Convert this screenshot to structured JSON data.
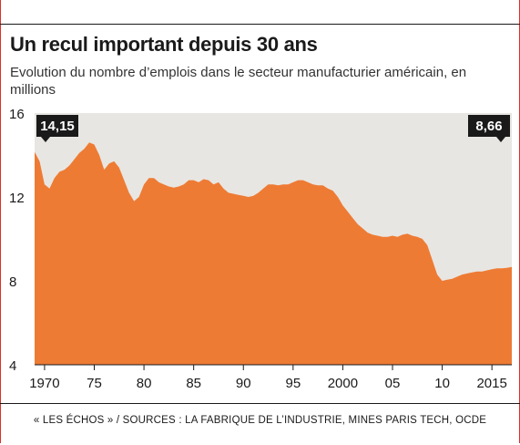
{
  "header": {
    "title": "Un recul important depuis 30 ans",
    "subtitle": "Evolution du nombre d’emplois dans le secteur manufacturier américain, en millions"
  },
  "footer": {
    "source": "« LES ÉCHOS » / SOURCES : LA FABRIQUE DE L’INDUSTRIE, MINES PARIS TECH, OCDE"
  },
  "colors": {
    "area": "#ee7b34",
    "background": "#e8e6e2",
    "label_box": "#1a1a1a",
    "frame": "#d9312b"
  },
  "chart_data": {
    "type": "area",
    "ylim": [
      4,
      16
    ],
    "xlim": [
      1969,
      2017
    ],
    "y_ticks": [
      "4",
      "8",
      "12",
      "16"
    ],
    "y_tick_values": [
      4,
      8,
      12,
      16
    ],
    "x_ticks": [
      "1970",
      "75",
      "80",
      "85",
      "90",
      "95",
      "2000",
      "05",
      "10",
      "2015"
    ],
    "x_tick_values": [
      1970,
      1975,
      1980,
      1985,
      1990,
      1995,
      2000,
      2005,
      2010,
      2015
    ],
    "annotations": [
      {
        "text": "14,15",
        "x": 1969,
        "y": 14.15
      },
      {
        "text": "8,66",
        "x": 2017,
        "y": 8.66
      }
    ],
    "x": [
      1969,
      1969.5,
      1970,
      1970.5,
      1971,
      1971.5,
      1972,
      1972.5,
      1973,
      1973.5,
      1974,
      1974.5,
      1975,
      1975.5,
      1976,
      1976.5,
      1977,
      1977.5,
      1978,
      1978.5,
      1979,
      1979.5,
      1980,
      1980.5,
      1981,
      1981.5,
      1982,
      1982.5,
      1983,
      1983.5,
      1984,
      1984.5,
      1985,
      1985.5,
      1986,
      1986.5,
      1987,
      1987.5,
      1988,
      1988.5,
      1989,
      1989.5,
      1990,
      1990.5,
      1991,
      1991.5,
      1992,
      1992.5,
      1993,
      1993.5,
      1994,
      1994.5,
      1995,
      1995.5,
      1996,
      1996.5,
      1997,
      1997.5,
      1998,
      1998.5,
      1999,
      1999.5,
      2000,
      2000.5,
      2001,
      2001.5,
      2002,
      2002.5,
      2003,
      2003.5,
      2004,
      2004.5,
      2005,
      2005.5,
      2006,
      2006.5,
      2007,
      2007.5,
      2008,
      2008.5,
      2009,
      2009.5,
      2010,
      2010.5,
      2011,
      2011.5,
      2012,
      2012.5,
      2013,
      2013.5,
      2014,
      2014.5,
      2015,
      2015.5,
      2016,
      2016.5,
      2017
    ],
    "series": [
      {
        "values": [
          14.15,
          13.7,
          12.6,
          12.4,
          12.9,
          13.2,
          13.3,
          13.5,
          13.8,
          14.1,
          14.3,
          14.6,
          14.5,
          14.0,
          13.3,
          13.6,
          13.7,
          13.4,
          12.8,
          12.2,
          11.8,
          12.0,
          12.6,
          12.9,
          12.9,
          12.7,
          12.6,
          12.5,
          12.45,
          12.5,
          12.6,
          12.8,
          12.8,
          12.7,
          12.85,
          12.8,
          12.6,
          12.7,
          12.4,
          12.2,
          12.15,
          12.1,
          12.05,
          12.0,
          12.05,
          12.2,
          12.4,
          12.6,
          12.6,
          12.55,
          12.6,
          12.6,
          12.7,
          12.8,
          12.8,
          12.7,
          12.6,
          12.55,
          12.55,
          12.4,
          12.3,
          12.0,
          11.6,
          11.3,
          11.0,
          10.7,
          10.5,
          10.3,
          10.2,
          10.15,
          10.1,
          10.1,
          10.15,
          10.1,
          10.2,
          10.25,
          10.15,
          10.1,
          10.0,
          9.7,
          9.0,
          8.3,
          8.0,
          8.05,
          8.1,
          8.2,
          8.3,
          8.35,
          8.4,
          8.45,
          8.45,
          8.5,
          8.55,
          8.6,
          8.6,
          8.62,
          8.66
        ]
      }
    ]
  }
}
